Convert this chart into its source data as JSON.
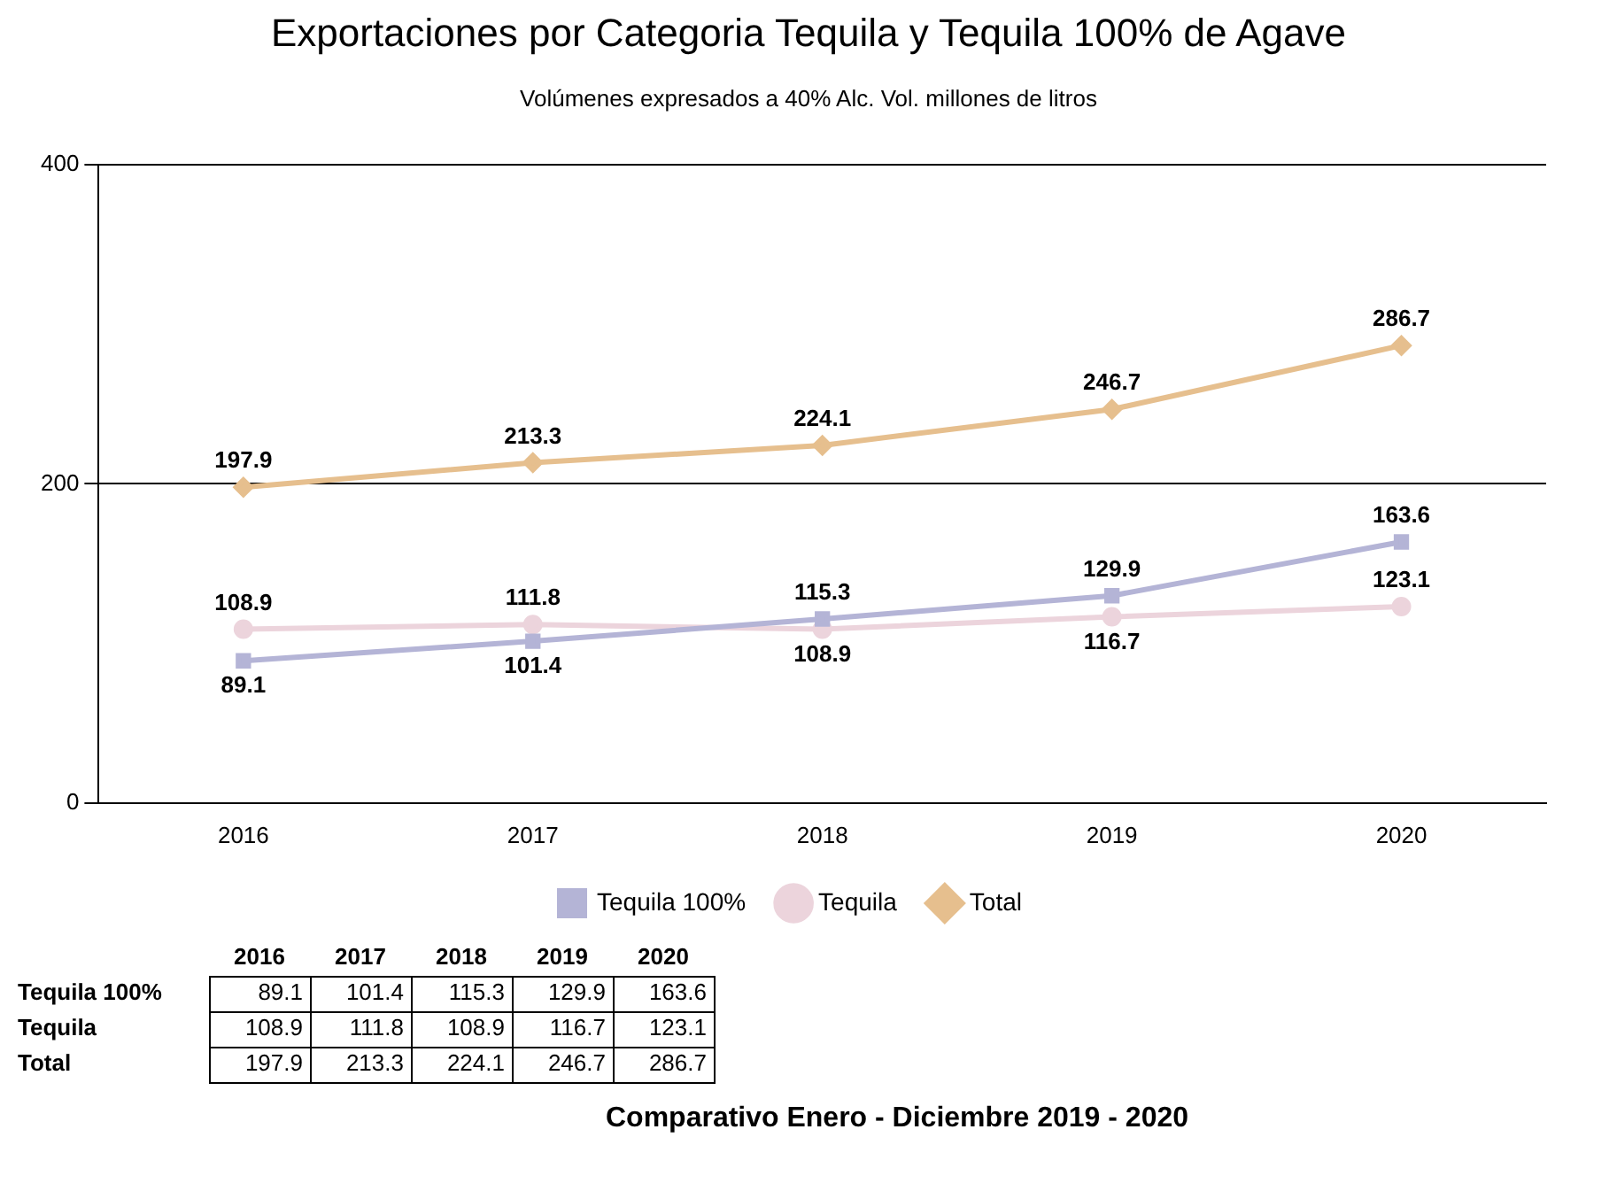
{
  "chart_data": {
    "type": "line",
    "title": "Exportaciones por Categoria Tequila y Tequila 100% de Agave",
    "subtitle": "Volúmenes expresados a 40% Alc. Vol. millones de litros",
    "categories": [
      "2016",
      "2017",
      "2018",
      "2019",
      "2020"
    ],
    "series": [
      {
        "name": "Tequila 100%",
        "color": "#b4b4d6",
        "marker": "square",
        "values": [
          89.1,
          101.4,
          115.3,
          129.9,
          163.6
        ],
        "value_labels": [
          "89.1",
          "101.4",
          "115.3",
          "129.9",
          "163.6"
        ]
      },
      {
        "name": "Tequila",
        "color": "#ecd4dc",
        "marker": "circle",
        "values": [
          108.9,
          111.8,
          108.9,
          116.7,
          123.1
        ],
        "value_labels": [
          "108.9",
          "111.8",
          "108.9",
          "116.7",
          "123.1"
        ]
      },
      {
        "name": "Total",
        "color": "#e6bf8e",
        "marker": "diamond",
        "values": [
          197.9,
          213.3,
          224.1,
          246.7,
          286.7
        ],
        "value_labels": [
          "197.9",
          "213.3",
          "224.1",
          "246.7",
          "286.7"
        ]
      }
    ],
    "ylim": [
      0,
      400
    ],
    "yticks": [
      0,
      200,
      400
    ],
    "grid": "y",
    "legend": "bottom",
    "data_labels": true,
    "line_style": "solid",
    "annotations": [
      "Comparativo Enero - Diciembre 2019 - 2020",
      "89.1",
      "101.4",
      "115.3",
      "129.9",
      "163.6",
      "108.9",
      "111.8",
      "108.9",
      "116.7",
      "123.1",
      "197.9",
      "213.3",
      "224.1",
      "246.7",
      "286.7"
    ]
  }
}
